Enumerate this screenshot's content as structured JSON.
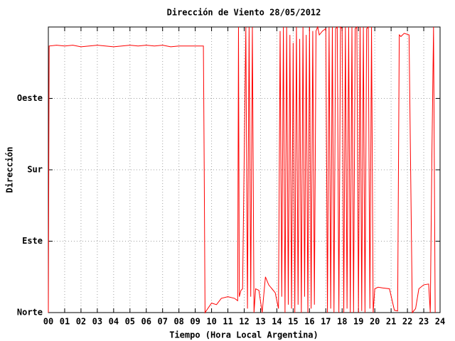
{
  "chart_data": {
    "type": "line",
    "title": "Dirección de Viento 28/05/2012",
    "x_label": "Tiempo (Hora Local Argentina)",
    "y_label": "Dirección",
    "xlim": [
      0,
      24
    ],
    "ylim": [
      0,
      360
    ],
    "grid": true,
    "xticks": [
      {
        "value": 0,
        "label": "00"
      },
      {
        "value": 1,
        "label": "01"
      },
      {
        "value": 2,
        "label": "02"
      },
      {
        "value": 3,
        "label": "03"
      },
      {
        "value": 4,
        "label": "04"
      },
      {
        "value": 5,
        "label": "05"
      },
      {
        "value": 6,
        "label": "06"
      },
      {
        "value": 7,
        "label": "07"
      },
      {
        "value": 8,
        "label": "08"
      },
      {
        "value": 9,
        "label": "09"
      },
      10,
      11,
      12,
      13,
      14,
      15,
      16,
      17,
      18,
      19,
      20,
      21,
      22,
      23,
      24
    ],
    "yticks": [
      {
        "value": 0,
        "label": "Norte"
      },
      {
        "value": 90,
        "label": "Este"
      },
      {
        "value": 180,
        "label": "Sur"
      },
      {
        "value": 270,
        "label": "Oeste"
      }
    ],
    "x": [
      0,
      0.05,
      0.5,
      1,
      1.5,
      2,
      2.5,
      3,
      3.5,
      4,
      4.5,
      5,
      5.5,
      6,
      6.5,
      7,
      7.5,
      8,
      8.5,
      9,
      9.5,
      9.55,
      9.6,
      10,
      10.3,
      10.6,
      11,
      11.4,
      11.6,
      11.65,
      11.7,
      11.8,
      11.9,
      12.1,
      12.2,
      12.3,
      12.4,
      12.5,
      12.6,
      12.7,
      12.9,
      13.1,
      13.3,
      13.5,
      13.7,
      13.9,
      14.1,
      14.2,
      14.3,
      14.4,
      14.5,
      14.6,
      14.7,
      14.8,
      14.9,
      15.0,
      15.1,
      15.2,
      15.3,
      15.4,
      15.5,
      15.6,
      15.7,
      15.8,
      15.9,
      16.0,
      16.1,
      16.2,
      16.3,
      16.4,
      16.5,
      16.6,
      16.8,
      17.0,
      17.1,
      17.2,
      17.3,
      17.4,
      17.5,
      17.6,
      17.7,
      17.8,
      17.9,
      18.0,
      18.1,
      18.2,
      18.3,
      18.4,
      18.5,
      18.6,
      18.7,
      18.8,
      18.9,
      19.0,
      19.1,
      19.2,
      19.3,
      19.4,
      19.5,
      19.6,
      19.7,
      19.8,
      19.9,
      20.0,
      20.2,
      20.5,
      20.9,
      21.2,
      21.4,
      21.5,
      21.6,
      21.8,
      22.1,
      22.3,
      22.5,
      22.7,
      23.0,
      23.3,
      23.4,
      23.5,
      23.6,
      23.7
    ],
    "series": [
      {
        "color": "#ff0000",
        "values": [
          0,
          336,
          337,
          336,
          337,
          335,
          336,
          337,
          336,
          335,
          336,
          337,
          336,
          337,
          336,
          337,
          335,
          336,
          336,
          336,
          336,
          180,
          0,
          12,
          10,
          18,
          20,
          18,
          15,
          360,
          20,
          28,
          30,
          360,
          5,
          360,
          20,
          360,
          0,
          30,
          28,
          0,
          45,
          35,
          30,
          25,
          5,
          355,
          20,
          360,
          0,
          360,
          10,
          350,
          5,
          340,
          0,
          360,
          10,
          345,
          0,
          360,
          20,
          350,
          0,
          360,
          5,
          355,
          10,
          355,
          360,
          350,
          355,
          358,
          0,
          360,
          5,
          360,
          0,
          358,
          360,
          0,
          360,
          358,
          0,
          360,
          5,
          360,
          0,
          360,
          0,
          358,
          360,
          0,
          360,
          2,
          360,
          0,
          358,
          360,
          5,
          360,
          0,
          30,
          32,
          31,
          30,
          3,
          2,
          350,
          348,
          352,
          350,
          0,
          5,
          30,
          35,
          36,
          0,
          200,
          360,
          0
        ]
      }
    ]
  }
}
